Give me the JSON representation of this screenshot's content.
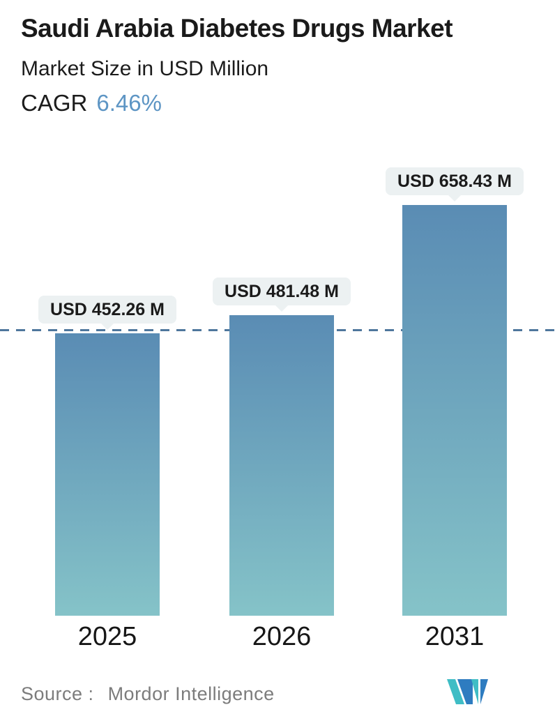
{
  "header": {
    "title": "Saudi Arabia Diabetes Drugs Market",
    "subtitle": "Market Size in USD Million",
    "cagr_label": "CAGR",
    "cagr_value": "6.46%"
  },
  "chart_data": {
    "type": "bar",
    "categories": [
      "2025",
      "2026",
      "2031"
    ],
    "values": [
      452.26,
      481.48,
      658.43
    ],
    "bar_labels": [
      "USD 452.26 M",
      "USD 481.48 M",
      "USD 658.43 M"
    ],
    "unit": "USD Million",
    "title": "Saudi Arabia Diabetes Drugs Market",
    "xlabel": "",
    "ylabel": "Market Size in USD Million",
    "ylim": [
      0,
      658.43
    ],
    "grid": false,
    "legend": false,
    "reference_line": {
      "value": 452.26,
      "style": "dashed",
      "color": "#4e769c"
    },
    "bar_gradient_top": "#5a8cb4",
    "bar_gradient_bottom": "#85c3c8",
    "value_label_bg": "#ecf1f2",
    "value_label_text_color": "#1b1b1b"
  },
  "footer": {
    "source_label": "Source :",
    "source_name": "Mordor Intelligence",
    "logo_name": "mordor-intelligence-logo",
    "logo_colors": {
      "teal": "#3fbdc5",
      "blue": "#2e7cc0"
    }
  },
  "colors": {
    "accent_blue": "#5d95c4",
    "text_dark": "#1a1a1a",
    "text_gray": "#7c7c7c",
    "background": "#ffffff"
  }
}
